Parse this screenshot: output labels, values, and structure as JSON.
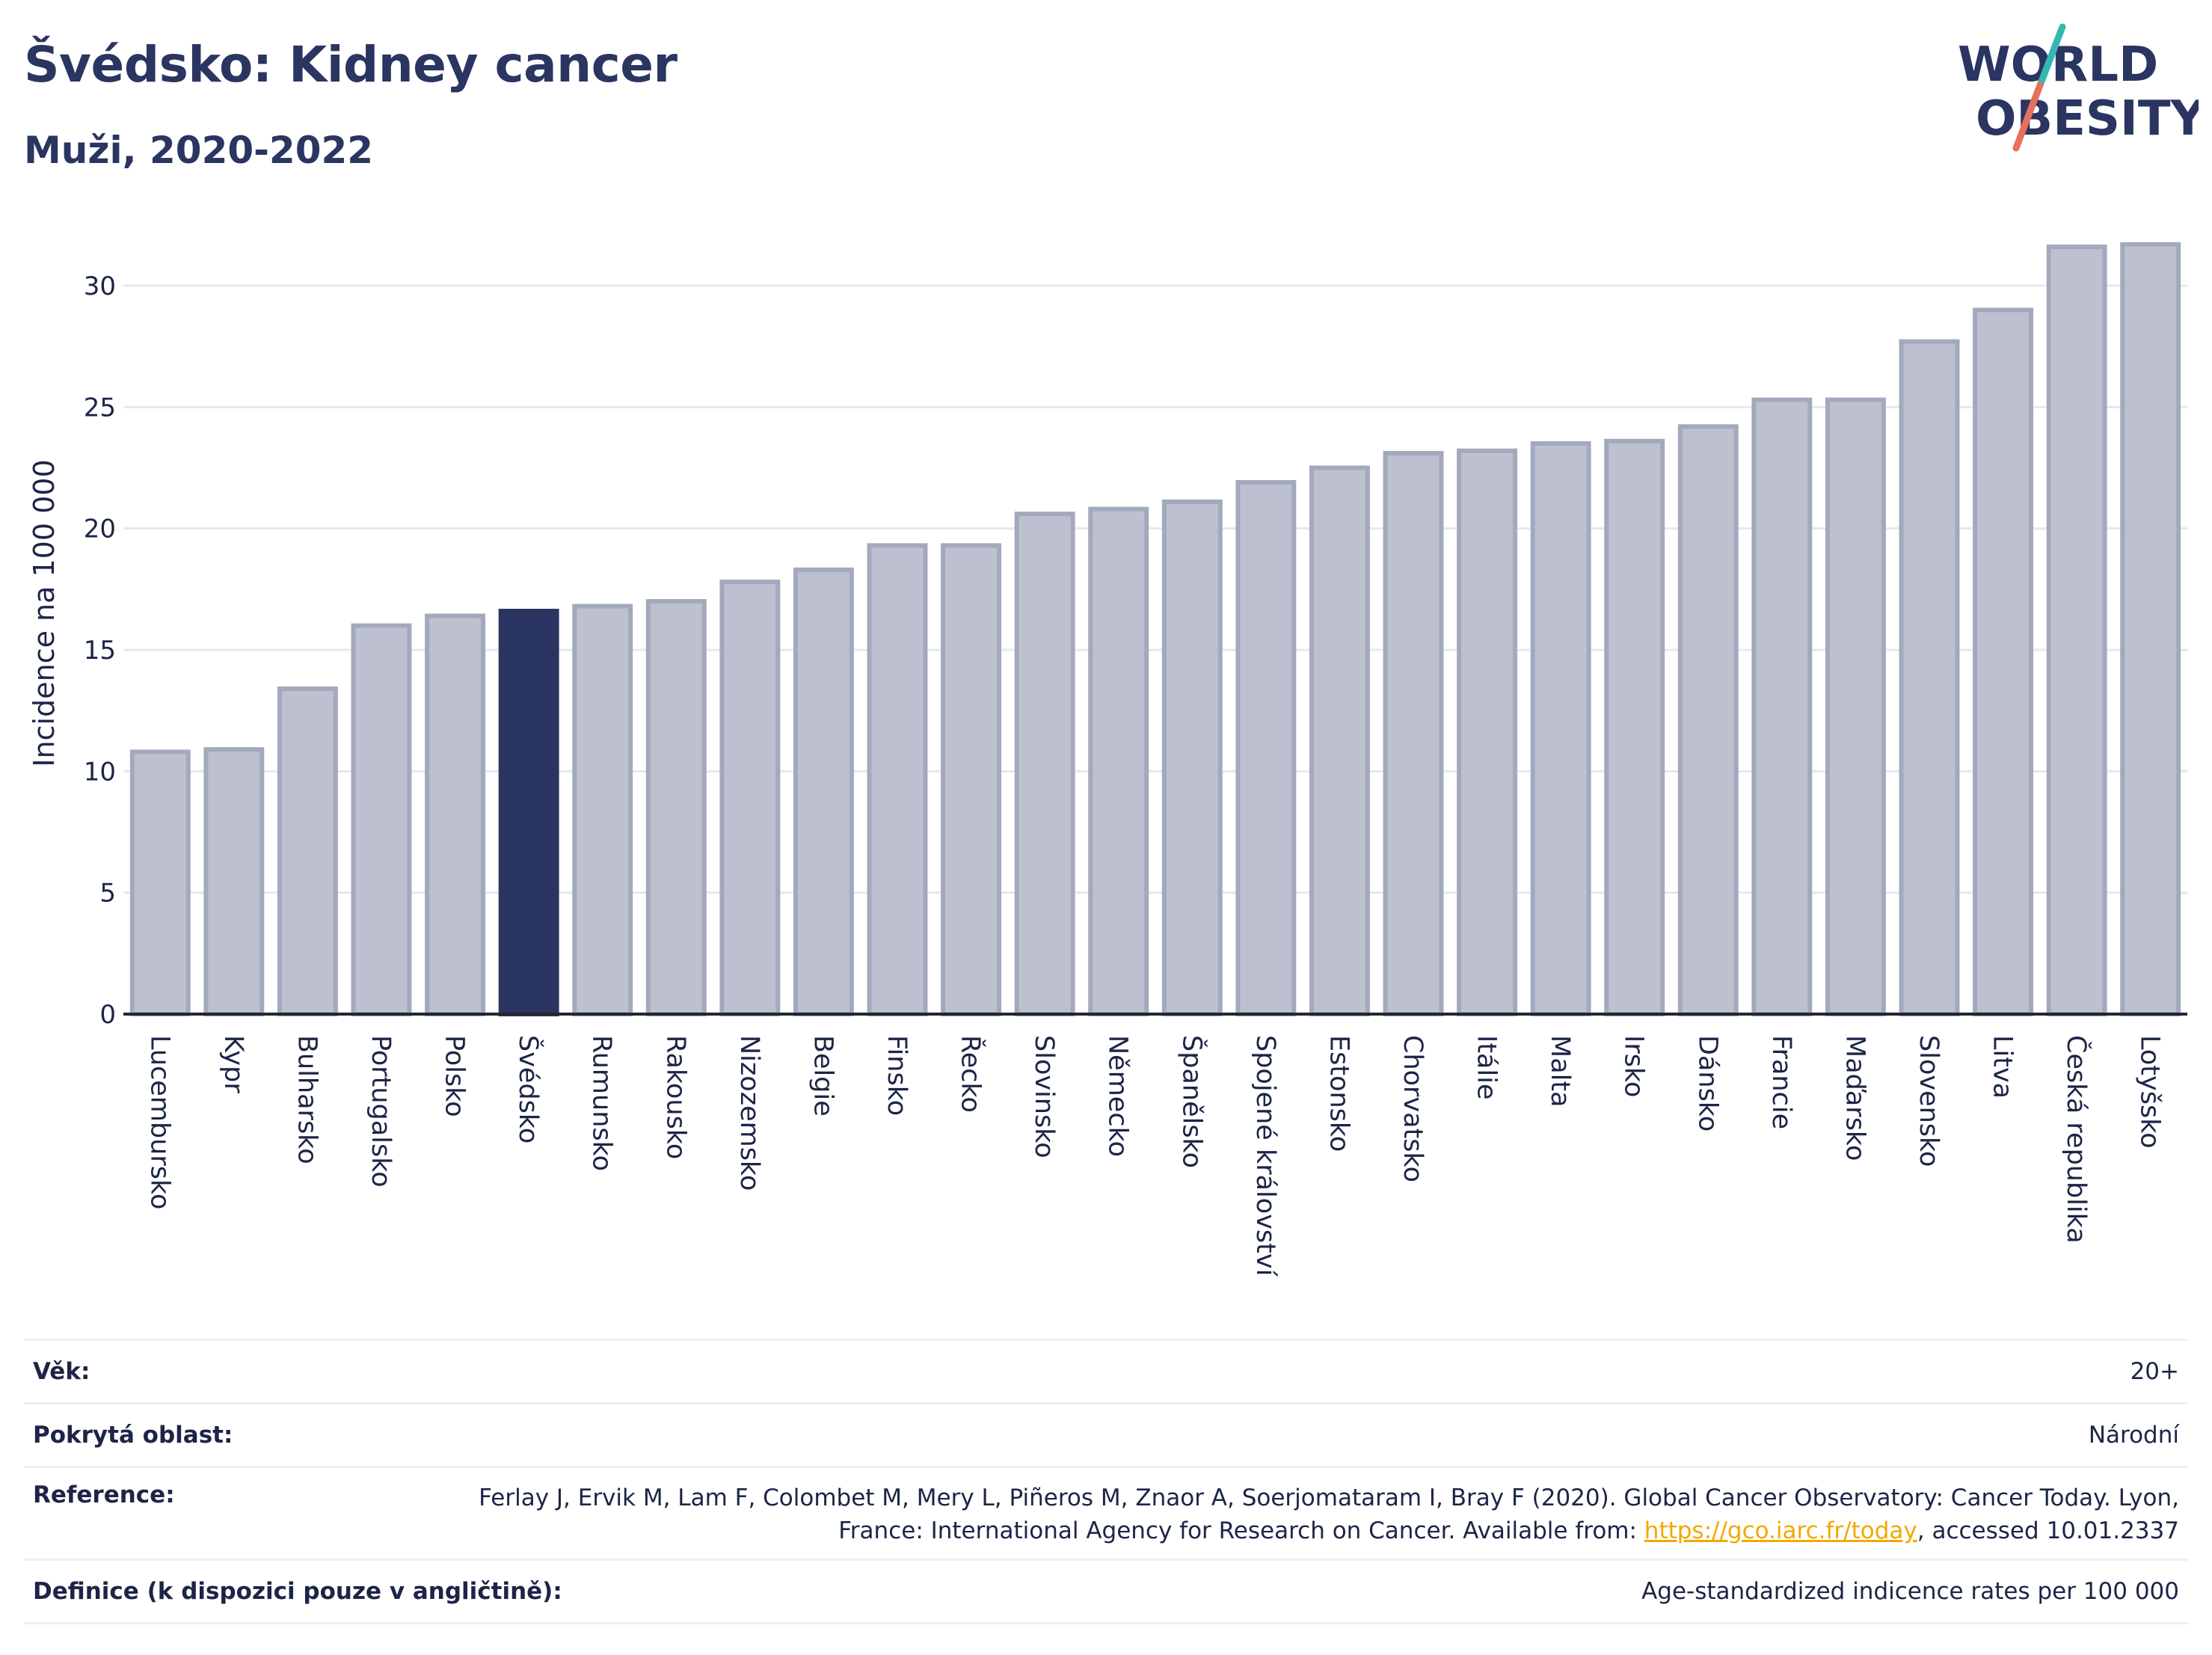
{
  "header": {
    "title": "Švédsko: Kidney cancer",
    "subtitle": "Muži, 2020-2022"
  },
  "logo": {
    "line1": "WORLD",
    "line2": "OBESITY",
    "accent_teal": "#35b7b1",
    "accent_coral": "#e8705d",
    "text_color": "#2b3561"
  },
  "colors": {
    "bar_default": "#bdc1cf",
    "bar_default_border": "#a3a9bd",
    "bar_highlight": "#2b3561",
    "grid": "#e6e8ef",
    "axis": "#222831"
  },
  "chart_data": {
    "type": "bar",
    "ylabel": "Incidence na 100 000",
    "ylim": [
      0,
      32
    ],
    "yticks": [
      0,
      5,
      10,
      15,
      20,
      25,
      30
    ],
    "highlight": "Švédsko",
    "categories": [
      "Lucembursko",
      "Kypr",
      "Bulharsko",
      "Portugalsko",
      "Polsko",
      "Švédsko",
      "Rumunsko",
      "Rakousko",
      "Nizozemsko",
      "Belgie",
      "Finsko",
      "Řecko",
      "Slovinsko",
      "Německo",
      "Španělsko",
      "Spojené království",
      "Estonsko",
      "Chorvatsko",
      "Itálie",
      "Malta",
      "Irsko",
      "Dánsko",
      "Francie",
      "Maďarsko",
      "Slovensko",
      "Litva",
      "Česká republika",
      "Lotyšsko"
    ],
    "values": [
      10.8,
      10.9,
      13.4,
      16.0,
      16.4,
      16.6,
      16.8,
      17.0,
      17.8,
      18.3,
      19.3,
      19.3,
      20.6,
      20.8,
      21.1,
      21.9,
      22.5,
      23.1,
      23.2,
      23.5,
      23.6,
      24.2,
      25.3,
      25.3,
      27.7,
      29.0,
      31.6,
      31.7
    ]
  },
  "info": {
    "age_label": "Věk:",
    "age_value": "20+",
    "coverage_label": "Pokrytá oblast:",
    "coverage_value": "Národní",
    "reference_label": "Reference:",
    "reference_text_1": "Ferlay J, Ervik M, Lam F, Colombet M, Mery L, Piñeros M, Znaor A, Soerjomataram I, Bray F (2020). Global Cancer Observatory: Cancer Today. Lyon, France: International Agency for Research on Cancer. Available from: ",
    "reference_link": "https://gco.iarc.fr/today",
    "reference_text_2": ", accessed 10.01.2337",
    "definition_label": "Definice (k dispozici pouze v angličtině):",
    "definition_value": "Age-standardized indicence rates per 100 000"
  }
}
